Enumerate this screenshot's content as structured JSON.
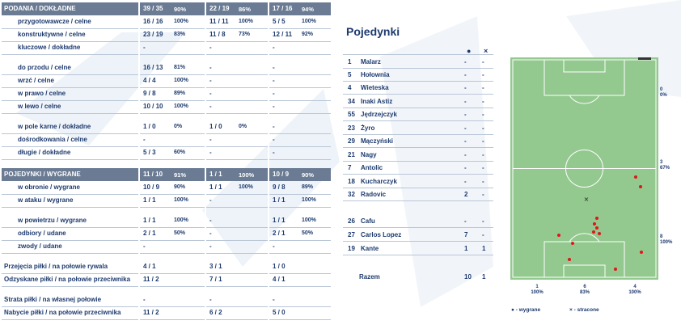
{
  "passing": {
    "header": {
      "label": "PODANIA / DOKŁADNE",
      "c1": "39 / 35",
      "p1": "90%",
      "c2": "22 / 19",
      "p2": "86%",
      "c3": "17 / 16",
      "p3": "94%"
    },
    "rows": [
      {
        "label": "przygotowawcze / celne",
        "c1": "16 / 16",
        "p1": "100%",
        "c2": "11 / 11",
        "p2": "100%",
        "c3": "5 / 5",
        "p3": "100%"
      },
      {
        "label": "konstruktywne / celne",
        "c1": "23 / 19",
        "p1": "83%",
        "c2": "11 / 8",
        "p2": "73%",
        "c3": "12 / 11",
        "p3": "92%"
      },
      {
        "label": "kluczowe / dokładne",
        "c1": "-",
        "p1": "",
        "c2": "-",
        "p2": "",
        "c3": "-",
        "p3": ""
      },
      {
        "label": "do przodu / celne",
        "c1": "16 / 13",
        "p1": "81%",
        "c2": "-",
        "p2": "",
        "c3": "-",
        "p3": ""
      },
      {
        "label": "wrzć / celne",
        "c1": "4 / 4",
        "p1": "100%",
        "c2": "-",
        "p2": "",
        "c3": "-",
        "p3": ""
      },
      {
        "label": "w prawo / celne",
        "c1": "9 / 8",
        "p1": "89%",
        "c2": "-",
        "p2": "",
        "c3": "-",
        "p3": ""
      },
      {
        "label": "w lewo / celne",
        "c1": "10 / 10",
        "p1": "100%",
        "c2": "-",
        "p2": "",
        "c3": "-",
        "p3": ""
      },
      {
        "label": "w pole karne / dokładne",
        "c1": "1 / 0",
        "p1": "0%",
        "c2": "1 / 0",
        "p2": "0%",
        "c3": "-",
        "p3": ""
      },
      {
        "label": "dośrodkowania / celne",
        "c1": "-",
        "p1": "",
        "c2": "-",
        "p2": "",
        "c3": "-",
        "p3": ""
      },
      {
        "label": "długie / dokładne",
        "c1": "5 / 3",
        "p1": "60%",
        "c2": "-",
        "p2": "",
        "c3": "-",
        "p3": ""
      }
    ]
  },
  "duels": {
    "header": {
      "label": "POJEDYNKI / WYGRANE",
      "c1": "11 / 10",
      "p1": "91%",
      "c2": "1 / 1",
      "p2": "100%",
      "c3": "10 / 9",
      "p3": "90%"
    },
    "rows": [
      {
        "label": "w obronie / wygrane",
        "c1": "10 / 9",
        "p1": "90%",
        "c2": "1 / 1",
        "p2": "100%",
        "c3": "9 / 8",
        "p3": "89%"
      },
      {
        "label": "w ataku / wygrane",
        "c1": "1 / 1",
        "p1": "100%",
        "c2": "-",
        "p2": "",
        "c3": "1 / 1",
        "p3": "100%"
      },
      {
        "label": "w powietrzu / wygrane",
        "c1": "1 / 1",
        "p1": "100%",
        "c2": "-",
        "p2": "",
        "c3": "1 / 1",
        "p3": "100%"
      },
      {
        "label": "odbiory / udane",
        "c1": "2 / 1",
        "p1": "50%",
        "c2": "-",
        "p2": "",
        "c3": "2 / 1",
        "p3": "50%"
      },
      {
        "label": "zwody / udane",
        "c1": "-",
        "p1": "",
        "c2": "-",
        "p2": "",
        "c3": "-",
        "p3": ""
      }
    ]
  },
  "other": [
    {
      "label": "Przejęcia piłki / na połowie rywala",
      "c1": "4 / 1",
      "c2": "3 / 1",
      "c3": "1 / 0"
    },
    {
      "label": "Odzyskane piłki / na połowie przeciwnika",
      "c1": "11 / 2",
      "c2": "7 / 1",
      "c3": "4 / 1"
    },
    {
      "label": "Strata piłki / na własnej połowie",
      "c1": "-",
      "c2": "-",
      "c3": "-"
    },
    {
      "label": "Nabycie piłki / na połowie przeciwnika",
      "c1": "11 / 2",
      "c2": "6 / 2",
      "c3": "5 / 0"
    }
  ],
  "pojedynki": {
    "title": "Pojedynki",
    "won_symbol": "●",
    "lost_symbol": "×",
    "players": [
      {
        "num": "1",
        "name": "Malarz",
        "won": "-",
        "lost": "-"
      },
      {
        "num": "5",
        "name": "Hołownia",
        "won": "-",
        "lost": "-"
      },
      {
        "num": "4",
        "name": "Wieteska",
        "won": "-",
        "lost": "-"
      },
      {
        "num": "34",
        "name": "Inaki Astiz",
        "won": "-",
        "lost": "-"
      },
      {
        "num": "55",
        "name": "Jędrzejczyk",
        "won": "-",
        "lost": "-"
      },
      {
        "num": "23",
        "name": "Żyro",
        "won": "-",
        "lost": "-"
      },
      {
        "num": "29",
        "name": "Mączyński",
        "won": "-",
        "lost": "-"
      },
      {
        "num": "21",
        "name": "Nagy",
        "won": "-",
        "lost": "-"
      },
      {
        "num": "7",
        "name": "Antolic",
        "won": "-",
        "lost": "-"
      },
      {
        "num": "18",
        "name": "Kucharczyk",
        "won": "-",
        "lost": "-"
      },
      {
        "num": "32",
        "name": "Radovic",
        "won": "2",
        "lost": "-"
      },
      {
        "num": "26",
        "name": "Cafu",
        "won": "-",
        "lost": "-"
      },
      {
        "num": "27",
        "name": "Carlos Lopez",
        "won": "7",
        "lost": "-"
      },
      {
        "num": "19",
        "name": "Kante",
        "won": "1",
        "lost": "1"
      }
    ],
    "total": {
      "label": "Razem",
      "won": "10",
      "lost": "1"
    },
    "side_stats": [
      {
        "count": "0",
        "pct": "0%"
      },
      {
        "count": "3",
        "pct": "67%"
      },
      {
        "count": "8",
        "pct": "100%"
      }
    ],
    "bottom_stats": [
      {
        "count": "1",
        "pct": "100%"
      },
      {
        "count": "6",
        "pct": "83%"
      },
      {
        "count": "4",
        "pct": "100%"
      }
    ],
    "legend": {
      "won": "- wygrane",
      "lost": "- stracone"
    },
    "colors": {
      "pitch": "#93c98f",
      "won_dot": "#e0161b",
      "lost_mark": "#222222"
    }
  }
}
